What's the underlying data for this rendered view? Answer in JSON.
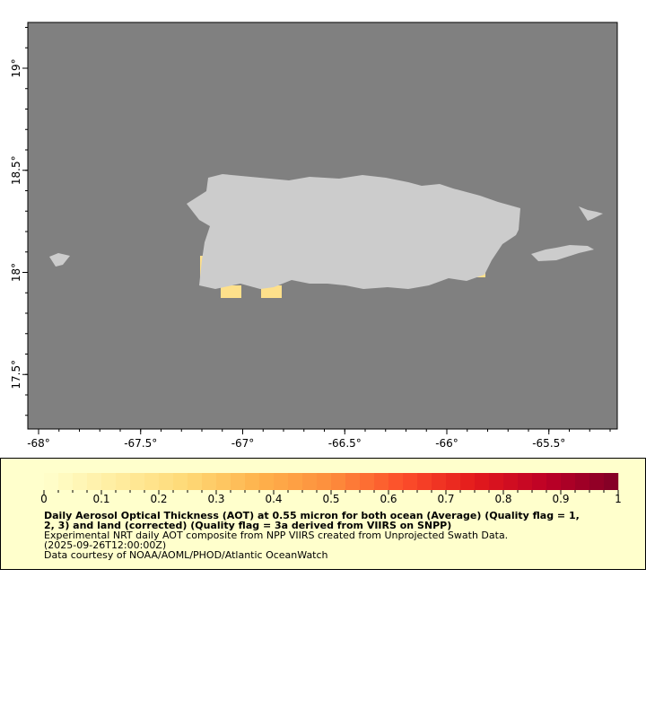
{
  "map": {
    "lat_ticks": [
      "19°",
      "18.5°",
      "18°",
      "17.5°"
    ],
    "lat_values": [
      19,
      18.5,
      18,
      17.5
    ],
    "lon_ticks": [
      "-68°",
      "-67.5°",
      "-67°",
      "-66.5°",
      "-66°",
      "-65.5°"
    ],
    "lon_values": [
      -68,
      -67.5,
      -67,
      -66.5,
      -66,
      -65.5
    ],
    "colors": {
      "ocean_nodata": "#808080",
      "land": "#cccccc",
      "aot_low": "#fee08b"
    }
  },
  "legend": {
    "scale_labels": [
      "0",
      "0.1",
      "0.2",
      "0.3",
      "0.4",
      "0.5",
      "0.6",
      "0.7",
      "0.8",
      "0.9",
      "1"
    ],
    "colormap": [
      "#ffffcc",
      "#ffeda0",
      "#fed976",
      "#feb24c",
      "#fd8d3c",
      "#fc4e2a",
      "#e31a1c",
      "#bd0026",
      "#800026"
    ],
    "title_line1": "Daily Aerosol Optical Thickness (AOT) at 0.55 micron for both ocean (Average) (Quality flag = 1,",
    "title_line2": "2, 3) and land (corrected) (Quality flag = 3a derived from VIIRS on SNPP)",
    "summary": "Experimental NRT daily AOT composite from NPP VIIRS created from Unprojected Swath Data.",
    "time": "(2025-09-26T12:00:00Z)",
    "credit": "Data courtesy of NOAA/AOML/PHOD/Atlantic OceanWatch"
  }
}
